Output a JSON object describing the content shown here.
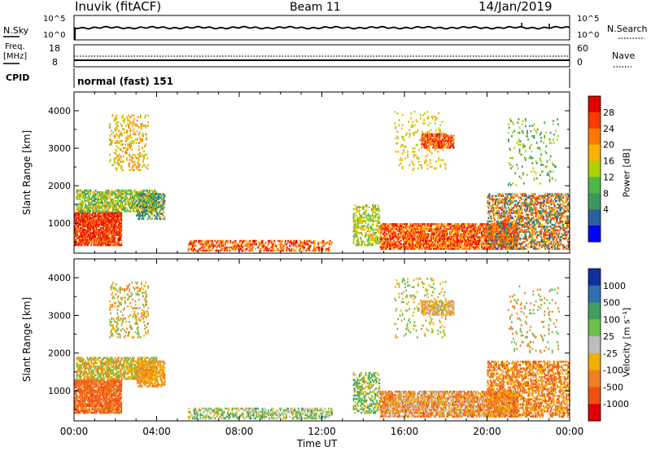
{
  "header": {
    "station": "Inuvik (fitACF)",
    "beam": "Beam 11",
    "date": "14/Jan/2019"
  },
  "strip_panels": {
    "nsky_label": "N.Sky",
    "nsky_ticks": [
      "10^5",
      "10^0"
    ],
    "nsearch_label": "N.Search",
    "nsearch_ticks": [
      "10^5",
      "10^0"
    ],
    "freq_label_line1": "Freq.",
    "freq_label_line2": "[MHz]",
    "freq_ticks": [
      "18",
      "8"
    ],
    "nave_label": "Nave",
    "nave_ticks": [
      "60",
      "0"
    ],
    "cpid_label": "CPID",
    "cpid_text": "normal (fast) 151"
  },
  "chart_data": [
    {
      "type": "heatmap",
      "name": "power",
      "ylabel": "Slant Range [km]",
      "y_ticks": [
        1000,
        2000,
        3000,
        4000
      ],
      "ylim": [
        200,
        4500
      ],
      "xlim_hours": [
        0,
        24
      ],
      "colorbar_label": "Power [dB]",
      "colorbar_ticks": [
        "28",
        "24",
        "20",
        "16",
        "12",
        "8",
        "4"
      ],
      "colorbar_colors": [
        "#e00000",
        "#ff3a00",
        "#ff7a00",
        "#ffb000",
        "#b0d000",
        "#4db848",
        "#3a9a5a",
        "#2a5fa0",
        "#0000ff"
      ]
    },
    {
      "type": "heatmap",
      "name": "velocity",
      "ylabel": "Slant Range [km]",
      "y_ticks": [
        1000,
        2000,
        3000,
        4000
      ],
      "ylim": [
        200,
        4500
      ],
      "xlim_hours": [
        0,
        24
      ],
      "colorbar_label": "Velocity [m s⁻¹]",
      "colorbar_ticks": [
        "1000",
        "500",
        "100",
        "25",
        "-25",
        "-100",
        "-500",
        "-1000"
      ],
      "colorbar_colors": [
        "#1030a0",
        "#2f6fb0",
        "#3f9f5f",
        "#6cc04a",
        "#bdbdbd",
        "#f0b000",
        "#f08020",
        "#f05010",
        "#e00000"
      ]
    }
  ],
  "time_axis": {
    "ticks": [
      "00:00",
      "04:00",
      "08:00",
      "12:00",
      "16:00",
      "20:00",
      "00:00"
    ],
    "label": "Time UT"
  }
}
